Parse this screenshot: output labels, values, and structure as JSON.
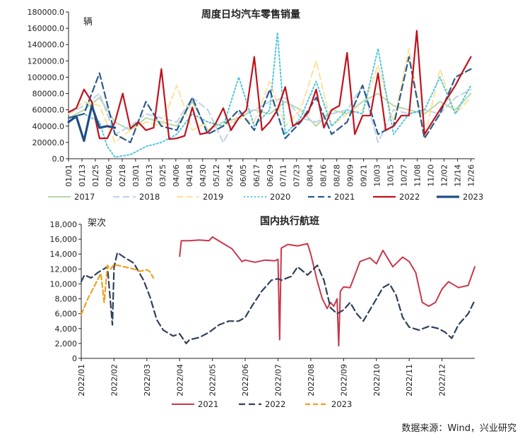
{
  "source": "数据来源：Wind，兴业研究",
  "chart_data": [
    {
      "type": "line",
      "title": "周度日均汽车零售销量",
      "unit_label": "辆",
      "ylim": [
        0,
        180000
      ],
      "yticks": [
        0,
        20000,
        40000,
        60000,
        80000,
        100000,
        120000,
        140000,
        160000,
        180000
      ],
      "ytick_labels": [
        "0.0",
        "20000.0",
        "40000.0",
        "60000.0",
        "80000.0",
        "100000.0",
        "120000.0",
        "140000.0",
        "160000.0",
        "180000.0"
      ],
      "x_tick_labels": [
        "01/01",
        "01/13",
        "01/25",
        "02/06",
        "02/18",
        "03/01",
        "03/13",
        "03/25",
        "04/06",
        "04/18",
        "04/30",
        "05/12",
        "05/24",
        "06/05",
        "06/17",
        "06/29",
        "07/11",
        "07/23",
        "08/04",
        "08/16",
        "08/28",
        "09/09",
        "09/21",
        "10/03",
        "10/15",
        "10/27",
        "11/08",
        "11/20",
        "12/02",
        "12/14",
        "12/26"
      ],
      "x_unit": "week index (0-52)",
      "legend_position": "bottom",
      "grid": false,
      "series": [
        {
          "name": "2017",
          "color": "#b9d7a8",
          "dash": "",
          "width": 2,
          "x": [
            0,
            2,
            4,
            6,
            8,
            10,
            12,
            14,
            16,
            18,
            20,
            22,
            24,
            26,
            28,
            30,
            32,
            34,
            36,
            38,
            40,
            42,
            44,
            46,
            48,
            50,
            52
          ],
          "values": [
            50000,
            60000,
            75000,
            45000,
            35000,
            50000,
            45000,
            40000,
            70000,
            35000,
            45000,
            50000,
            60000,
            55000,
            70000,
            60000,
            40000,
            60000,
            55000,
            70000,
            80000,
            65000,
            60000,
            55000,
            70000,
            60000,
            80000
          ]
        },
        {
          "name": "2018",
          "color": "#bcd1ea",
          "dash": "9,5",
          "width": 2,
          "x": [
            0,
            2,
            4,
            6,
            8,
            10,
            12,
            14,
            16,
            18,
            20,
            22,
            24,
            26,
            28,
            30,
            32,
            34,
            36,
            38,
            40,
            42,
            44,
            46,
            48,
            50,
            52
          ],
          "values": [
            55000,
            65000,
            80000,
            30000,
            40000,
            55000,
            50000,
            45000,
            75000,
            60000,
            20000,
            55000,
            60000,
            70000,
            75000,
            50000,
            45000,
            55000,
            60000,
            90000,
            20000,
            60000,
            55000,
            60000,
            55000,
            75000,
            85000
          ]
        },
        {
          "name": "2019",
          "color": "#ffe29a",
          "dash": "9,5",
          "width": 2,
          "x": [
            0,
            2,
            4,
            6,
            8,
            10,
            12,
            14,
            16,
            18,
            20,
            22,
            24,
            26,
            28,
            30,
            32,
            34,
            36,
            38,
            40,
            42,
            44,
            46,
            48,
            50,
            52
          ],
          "values": [
            55000,
            70000,
            65000,
            20000,
            35000,
            45000,
            40000,
            90000,
            35000,
            45000,
            40000,
            50000,
            45000,
            95000,
            40000,
            60000,
            120000,
            40000,
            55000,
            60000,
            115000,
            45000,
            135000,
            25000,
            110000,
            55000,
            75000
          ]
        },
        {
          "name": "2020",
          "color": "#4fc6df",
          "dash": "2,3",
          "width": 2,
          "x": [
            0,
            2,
            4,
            5,
            6,
            8,
            10,
            12,
            14,
            16,
            18,
            20,
            22,
            24,
            26,
            27,
            28,
            30,
            32,
            34,
            36,
            38,
            40,
            42,
            44,
            46,
            48,
            50,
            52
          ],
          "values": [
            50000,
            55000,
            45000,
            15000,
            2000,
            5000,
            15000,
            20000,
            30000,
            55000,
            45000,
            40000,
            100000,
            40000,
            60000,
            155000,
            30000,
            50000,
            95000,
            40000,
            60000,
            55000,
            135000,
            30000,
            55000,
            60000,
            100000,
            55000,
            90000
          ]
        },
        {
          "name": "2021",
          "color": "#2b5a8e",
          "dash": "9,5",
          "width": 2.2,
          "x": [
            0,
            2,
            4,
            6,
            8,
            10,
            12,
            14,
            16,
            18,
            20,
            22,
            24,
            26,
            28,
            30,
            32,
            34,
            36,
            38,
            40,
            42,
            44,
            46,
            48,
            50,
            52
          ],
          "values": [
            50000,
            55000,
            105000,
            30000,
            20000,
            70000,
            40000,
            35000,
            75000,
            30000,
            40000,
            60000,
            35000,
            85000,
            25000,
            45000,
            75000,
            30000,
            45000,
            90000,
            30000,
            40000,
            125000,
            25000,
            55000,
            100000,
            110000
          ]
        },
        {
          "name": "2022",
          "color": "#c0121e",
          "dash": "",
          "width": 2.2,
          "x": [
            0,
            1,
            2,
            3,
            4,
            5,
            6,
            7,
            8,
            9,
            10,
            11,
            12,
            13,
            14,
            15,
            16,
            17,
            18,
            19,
            20,
            21,
            22,
            23,
            24,
            25,
            26,
            27,
            28,
            29,
            30,
            31,
            32,
            33,
            34,
            35,
            36,
            37,
            38,
            39,
            40,
            41,
            42,
            43,
            44,
            45,
            46,
            47,
            48,
            49,
            50,
            51,
            52
          ],
          "values": [
            57000,
            62000,
            85000,
            70000,
            25000,
            25000,
            45000,
            80000,
            37000,
            45000,
            35000,
            38000,
            110000,
            24000,
            25000,
            28000,
            63000,
            30000,
            32000,
            43000,
            62000,
            35000,
            50000,
            60000,
            125000,
            35000,
            45000,
            60000,
            88000,
            40000,
            46000,
            57000,
            85000,
            38000,
            60000,
            65000,
            130000,
            30000,
            53000,
            53000,
            105000,
            35000,
            40000,
            53000,
            53000,
            157000,
            30000,
            45000,
            60000,
            75000,
            90000,
            108000,
            125000
          ]
        },
        {
          "name": "2023",
          "color": "#1f4e85",
          "dash": "",
          "width": 3.2,
          "x": [
            0,
            1,
            2,
            3,
            4,
            5,
            6
          ],
          "values": [
            45000,
            52000,
            22000,
            65000,
            38000,
            40000,
            38000
          ]
        }
      ]
    },
    {
      "type": "line",
      "title": "国内执行航班",
      "unit_label": "架次",
      "ylim": [
        0,
        18000
      ],
      "yticks": [
        0,
        2000,
        4000,
        6000,
        8000,
        10000,
        12000,
        14000,
        16000,
        18000
      ],
      "ytick_labels": [
        "0",
        "2,000",
        "4,000",
        "6,000",
        "8,000",
        "10,000",
        "12,000",
        "14,000",
        "16,000",
        "18,000"
      ],
      "x_tick_labels": [
        "2022/01",
        "2022/02",
        "2022/03",
        "2022/04",
        "2022/05",
        "2022/06",
        "2022/07",
        "2022/08",
        "2022/09",
        "2022/10",
        "2022/11",
        "2022/12"
      ],
      "x_unit": "month (fractional, 0-12)",
      "legend_position": "bottom",
      "grid": false,
      "series": [
        {
          "name": "2021",
          "color": "#c8384a",
          "dash": "",
          "width": 2,
          "x": [
            3.0,
            3.05,
            3.3,
            3.6,
            3.9,
            4.0,
            4.3,
            4.6,
            4.9,
            5.0,
            5.3,
            5.6,
            5.9,
            6.0,
            6.05,
            6.1,
            6.3,
            6.6,
            6.9,
            7.0,
            7.2,
            7.35,
            7.5,
            7.6,
            7.7,
            7.8,
            7.85,
            7.9,
            8.0,
            8.2,
            8.5,
            8.8,
            9.0,
            9.2,
            9.5,
            9.8,
            10.0,
            10.2,
            10.4,
            10.6,
            10.8,
            11.0,
            11.2,
            11.5,
            11.8,
            12.0
          ],
          "values": [
            13700,
            15800,
            15800,
            15900,
            15800,
            16300,
            15500,
            14700,
            13000,
            13200,
            12900,
            13200,
            13100,
            13300,
            2500,
            14800,
            15300,
            15100,
            15400,
            14000,
            10300,
            8000,
            6700,
            7500,
            7000,
            8000,
            1700,
            9000,
            9600,
            9500,
            13000,
            13500,
            12700,
            14500,
            12300,
            13600,
            13000,
            11500,
            7500,
            7000,
            7500,
            9300,
            10300,
            9500,
            9800,
            12300
          ]
        },
        {
          "name": "2022",
          "color": "#2f3f5c",
          "dash": "9,5",
          "width": 2.2,
          "x": [
            0,
            0.1,
            0.3,
            0.5,
            0.8,
            0.95,
            1.0,
            1.1,
            1.3,
            1.6,
            1.9,
            2.1,
            2.3,
            2.5,
            2.8,
            3.0,
            3.2,
            3.3,
            3.6,
            3.9,
            4.2,
            4.5,
            4.8,
            5.0,
            5.2,
            5.5,
            5.8,
            6.0,
            6.1,
            6.4,
            6.6,
            6.9,
            7.2,
            7.4,
            7.6,
            7.8,
            8.0,
            8.2,
            8.4,
            8.6,
            8.8,
            9.0,
            9.2,
            9.4,
            9.6,
            9.8,
            10.0,
            10.3,
            10.6,
            10.9,
            11.1,
            11.3,
            11.5,
            11.8,
            12.0
          ],
          "values": [
            10300,
            11200,
            10800,
            11500,
            12300,
            4500,
            12200,
            14200,
            13600,
            12800,
            10500,
            8200,
            5200,
            3800,
            3000,
            3300,
            2000,
            2500,
            2800,
            3500,
            4500,
            5000,
            5000,
            5500,
            7000,
            9000,
            10500,
            10700,
            10500,
            11000,
            12300,
            11200,
            12500,
            10500,
            6800,
            6000,
            6500,
            7500,
            6000,
            5000,
            6500,
            8000,
            9500,
            10000,
            8500,
            5500,
            4200,
            3800,
            4300,
            4000,
            3500,
            2700,
            4500,
            6000,
            7800
          ]
        },
        {
          "name": "2023",
          "color": "#f0a020",
          "dash": "7,4",
          "width": 2.2,
          "x": [
            0,
            0.2,
            0.4,
            0.6,
            0.7,
            0.8,
            0.9,
            1.0,
            1.2,
            1.4,
            1.6,
            1.8,
            2.0,
            2.1,
            2.2
          ],
          "values": [
            5900,
            8000,
            9700,
            11400,
            7500,
            12500,
            12000,
            12600,
            12400,
            12200,
            12000,
            11700,
            11900,
            11600,
            10800
          ]
        }
      ]
    }
  ]
}
